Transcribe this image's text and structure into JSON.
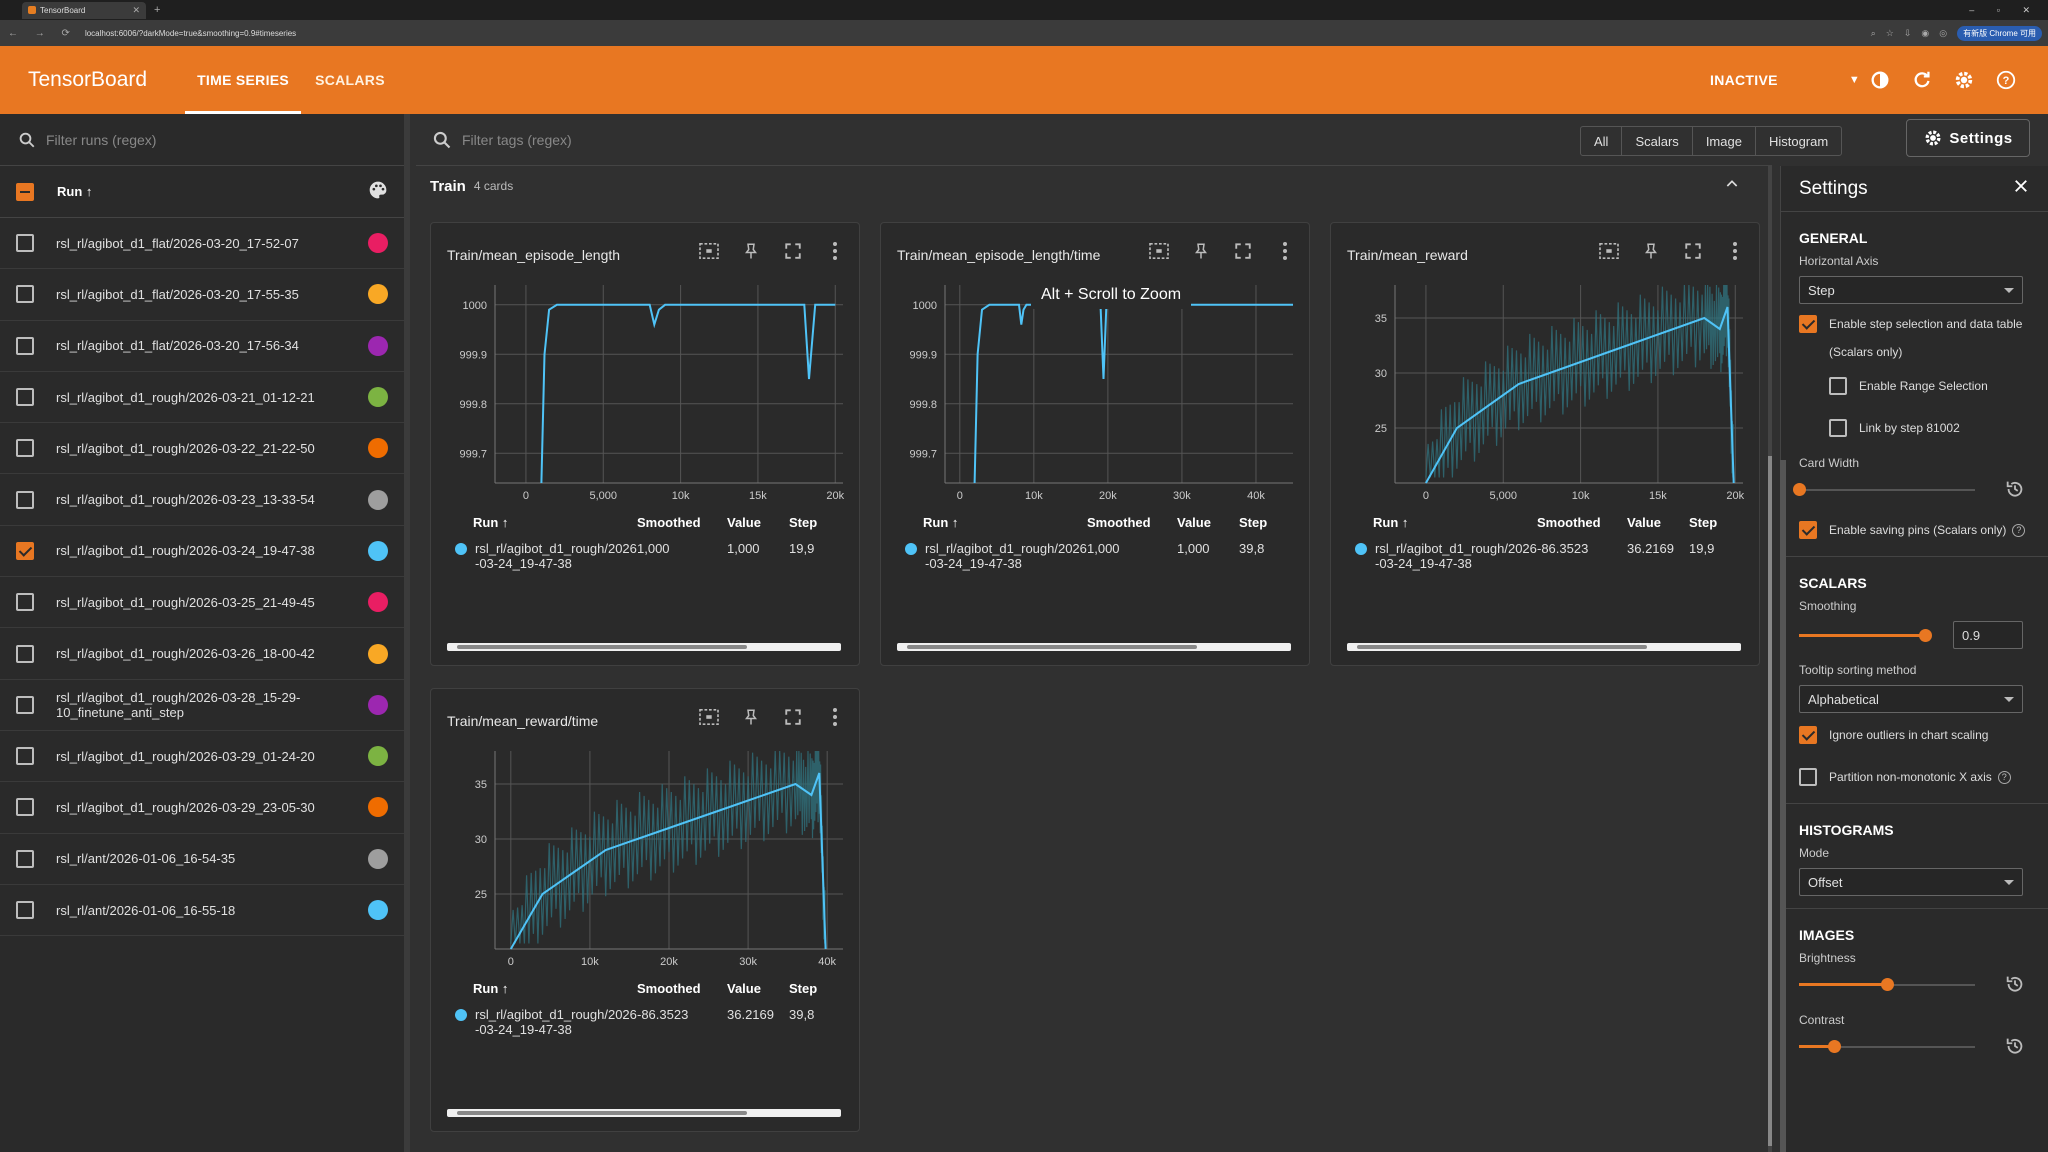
{
  "browser": {
    "tab_title": "TensorBoard",
    "url": "localhost:6006/?darkMode=true&smoothing=0.9#timeseries",
    "badge": "有新版 Chrome 可用"
  },
  "header": {
    "logo": "TensorBoard",
    "tabs": [
      "TIME SERIES",
      "SCALARS"
    ],
    "status": "INACTIVE"
  },
  "sidebar": {
    "filter_placeholder": "Filter runs (regex)",
    "run_header": "Run ↑",
    "runs": [
      {
        "name": "rsl_rl/agibot_d1_flat/2026-03-20_17-52-07",
        "color": "#e91e63",
        "checked": false
      },
      {
        "name": "rsl_rl/agibot_d1_flat/2026-03-20_17-55-35",
        "color": "#f9a825",
        "checked": false
      },
      {
        "name": "rsl_rl/agibot_d1_flat/2026-03-20_17-56-34",
        "color": "#9c27b0",
        "checked": false
      },
      {
        "name": "rsl_rl/agibot_d1_rough/2026-03-21_01-12-21",
        "color": "#7cb342",
        "checked": false
      },
      {
        "name": "rsl_rl/agibot_d1_rough/2026-03-22_21-22-50",
        "color": "#ef6c00",
        "checked": false
      },
      {
        "name": "rsl_rl/agibot_d1_rough/2026-03-23_13-33-54",
        "color": "#9e9e9e",
        "checked": false
      },
      {
        "name": "rsl_rl/agibot_d1_rough/2026-03-24_19-47-38",
        "color": "#4fc3f7",
        "checked": true
      },
      {
        "name": "rsl_rl/agibot_d1_rough/2026-03-25_21-49-45",
        "color": "#e91e63",
        "checked": false
      },
      {
        "name": "rsl_rl/agibot_d1_rough/2026-03-26_18-00-42",
        "color": "#f9a825",
        "checked": false
      },
      {
        "name": "rsl_rl/agibot_d1_rough/2026-03-28_15-29-10_finetune_anti_step",
        "color": "#9c27b0",
        "checked": false
      },
      {
        "name": "rsl_rl/agibot_d1_rough/2026-03-29_01-24-20",
        "color": "#7cb342",
        "checked": false
      },
      {
        "name": "rsl_rl/agibot_d1_rough/2026-03-29_23-05-30",
        "color": "#ef6c00",
        "checked": false
      },
      {
        "name": "rsl_rl/ant/2026-01-06_16-54-35",
        "color": "#9e9e9e",
        "checked": false
      },
      {
        "name": "rsl_rl/ant/2026-01-06_16-55-18",
        "color": "#4fc3f7",
        "checked": false
      }
    ]
  },
  "main": {
    "filter_placeholder": "Filter tags (regex)",
    "types": [
      "All",
      "Scalars",
      "Image",
      "Histogram"
    ],
    "settings_label": "Settings",
    "group_name": "Train",
    "group_count": "4 cards",
    "tooltip": "Alt + Scroll to Zoom",
    "legend_headers": {
      "run": "Run ↑",
      "smoothed": "Smoothed",
      "value": "Value",
      "step": "Step"
    }
  },
  "cards": [
    {
      "title": "Train/mean_episode_length",
      "run": "rsl_rl/agibot_d1_rough/2026-03-24_19-47-38",
      "smoothed": "1,000",
      "value": "1,000",
      "step": "19,9"
    },
    {
      "title": "Train/mean_episode_length/time",
      "run": "rsl_rl/agibot_d1_rough/2026-03-24_19-47-38",
      "smoothed": "1,000",
      "value": "1,000",
      "step": "39,8"
    },
    {
      "title": "Train/mean_reward",
      "run": "rsl_rl/agibot_d1_rough/2026-03-24_19-47-38",
      "smoothed": "-86.3523",
      "value": "36.2169",
      "step": "19,9"
    },
    {
      "title": "Train/mean_reward/time",
      "run": "rsl_rl/agibot_d1_rough/2026-03-24_19-47-38",
      "smoothed": "-86.3523",
      "value": "36.2169",
      "step": "39,8"
    }
  ],
  "chart_data": [
    {
      "type": "line",
      "title": "Train/mean_episode_length",
      "xticks": [
        "0",
        "5,000",
        "10k",
        "15k",
        "20k"
      ],
      "xlim": [
        -2000,
        20500
      ],
      "yticks": [
        "1000",
        "999.9",
        "999.8",
        "999.7"
      ],
      "ylim": [
        999.64,
        1000.04
      ],
      "series": [
        {
          "x": [
            1000,
            1200,
            1500,
            2000,
            8000,
            8300,
            8600,
            9000,
            18000,
            18300,
            18700,
            20000
          ],
          "y": [
            999.62,
            999.9,
            999.99,
            1000,
            1000,
            999.96,
            999.99,
            1000,
            1000,
            999.85,
            1000,
            1000
          ]
        }
      ],
      "color": "#4fc3f7"
    },
    {
      "type": "line",
      "title": "Train/mean_episode_length/time",
      "xticks": [
        "0",
        "10k",
        "20k",
        "30k",
        "40k"
      ],
      "xlim": [
        -2000,
        45000
      ],
      "yticks": [
        "1000",
        "999.9",
        "999.8",
        "999.7"
      ],
      "ylim": [
        999.64,
        1000.04
      ],
      "series": [
        {
          "x": [
            2000,
            2400,
            3000,
            4000,
            8000,
            8300,
            8600,
            9000,
            19000,
            19400,
            19800,
            20500,
            45000
          ],
          "y": [
            999.62,
            999.9,
            999.99,
            1000,
            1000,
            999.96,
            999.99,
            1000,
            1000,
            999.85,
            1000,
            1000,
            1000
          ]
        }
      ],
      "color": "#4fc3f7"
    },
    {
      "type": "line",
      "title": "Train/mean_reward",
      "xticks": [
        "0",
        "5,000",
        "10k",
        "15k",
        "20k"
      ],
      "xlim": [
        -2000,
        20500
      ],
      "yticks": [
        "35",
        "30",
        "25"
      ],
      "ylim": [
        20,
        38
      ],
      "series": [
        {
          "x": [
            0,
            2000,
            4000,
            6000,
            8000,
            10000,
            12000,
            14000,
            16000,
            18000,
            19000,
            19500,
            19900
          ],
          "y": [
            20,
            25,
            27,
            29,
            30,
            31,
            32,
            33,
            34,
            35,
            34,
            36,
            20
          ]
        }
      ],
      "color": "#4fc3f7"
    },
    {
      "type": "line",
      "title": "Train/mean_reward/time",
      "xticks": [
        "0",
        "10k",
        "20k",
        "30k",
        "40k"
      ],
      "xlim": [
        -2000,
        42000
      ],
      "yticks": [
        "35",
        "30",
        "25"
      ],
      "ylim": [
        20,
        38
      ],
      "series": [
        {
          "x": [
            0,
            4000,
            8000,
            12000,
            16000,
            20000,
            24000,
            28000,
            32000,
            36000,
            38000,
            39000,
            39800
          ],
          "y": [
            20,
            25,
            27,
            29,
            30,
            31,
            32,
            33,
            34,
            35,
            34,
            36,
            20
          ]
        }
      ],
      "color": "#4fc3f7"
    }
  ],
  "settings": {
    "title": "Settings",
    "general": {
      "heading": "GENERAL",
      "horizontal_axis_label": "Horizontal Axis",
      "horizontal_axis_value": "Step",
      "step_selection": "Enable step selection and data table",
      "step_selection_note": "(Scalars only)",
      "range_selection": "Enable Range Selection",
      "link_by_step": "Link by step 81002",
      "card_width_label": "Card Width",
      "card_width_level": 0.0,
      "saving_pins": "Enable saving pins (Scalars only)"
    },
    "scalars": {
      "heading": "SCALARS",
      "smoothing_label": "Smoothing",
      "smoothing_value": "0.9",
      "tooltip_sort_label": "Tooltip sorting method",
      "tooltip_sort_value": "Alphabetical",
      "ignore_outliers": "Ignore outliers in chart scaling",
      "partition": "Partition non-monotonic X axis"
    },
    "histograms": {
      "heading": "HISTOGRAMS",
      "mode_label": "Mode",
      "mode_value": "Offset"
    },
    "images": {
      "heading": "IMAGES",
      "brightness_label": "Brightness",
      "brightness_level": 0.5,
      "contrast_label": "Contrast",
      "contrast_level": 0.2
    }
  }
}
